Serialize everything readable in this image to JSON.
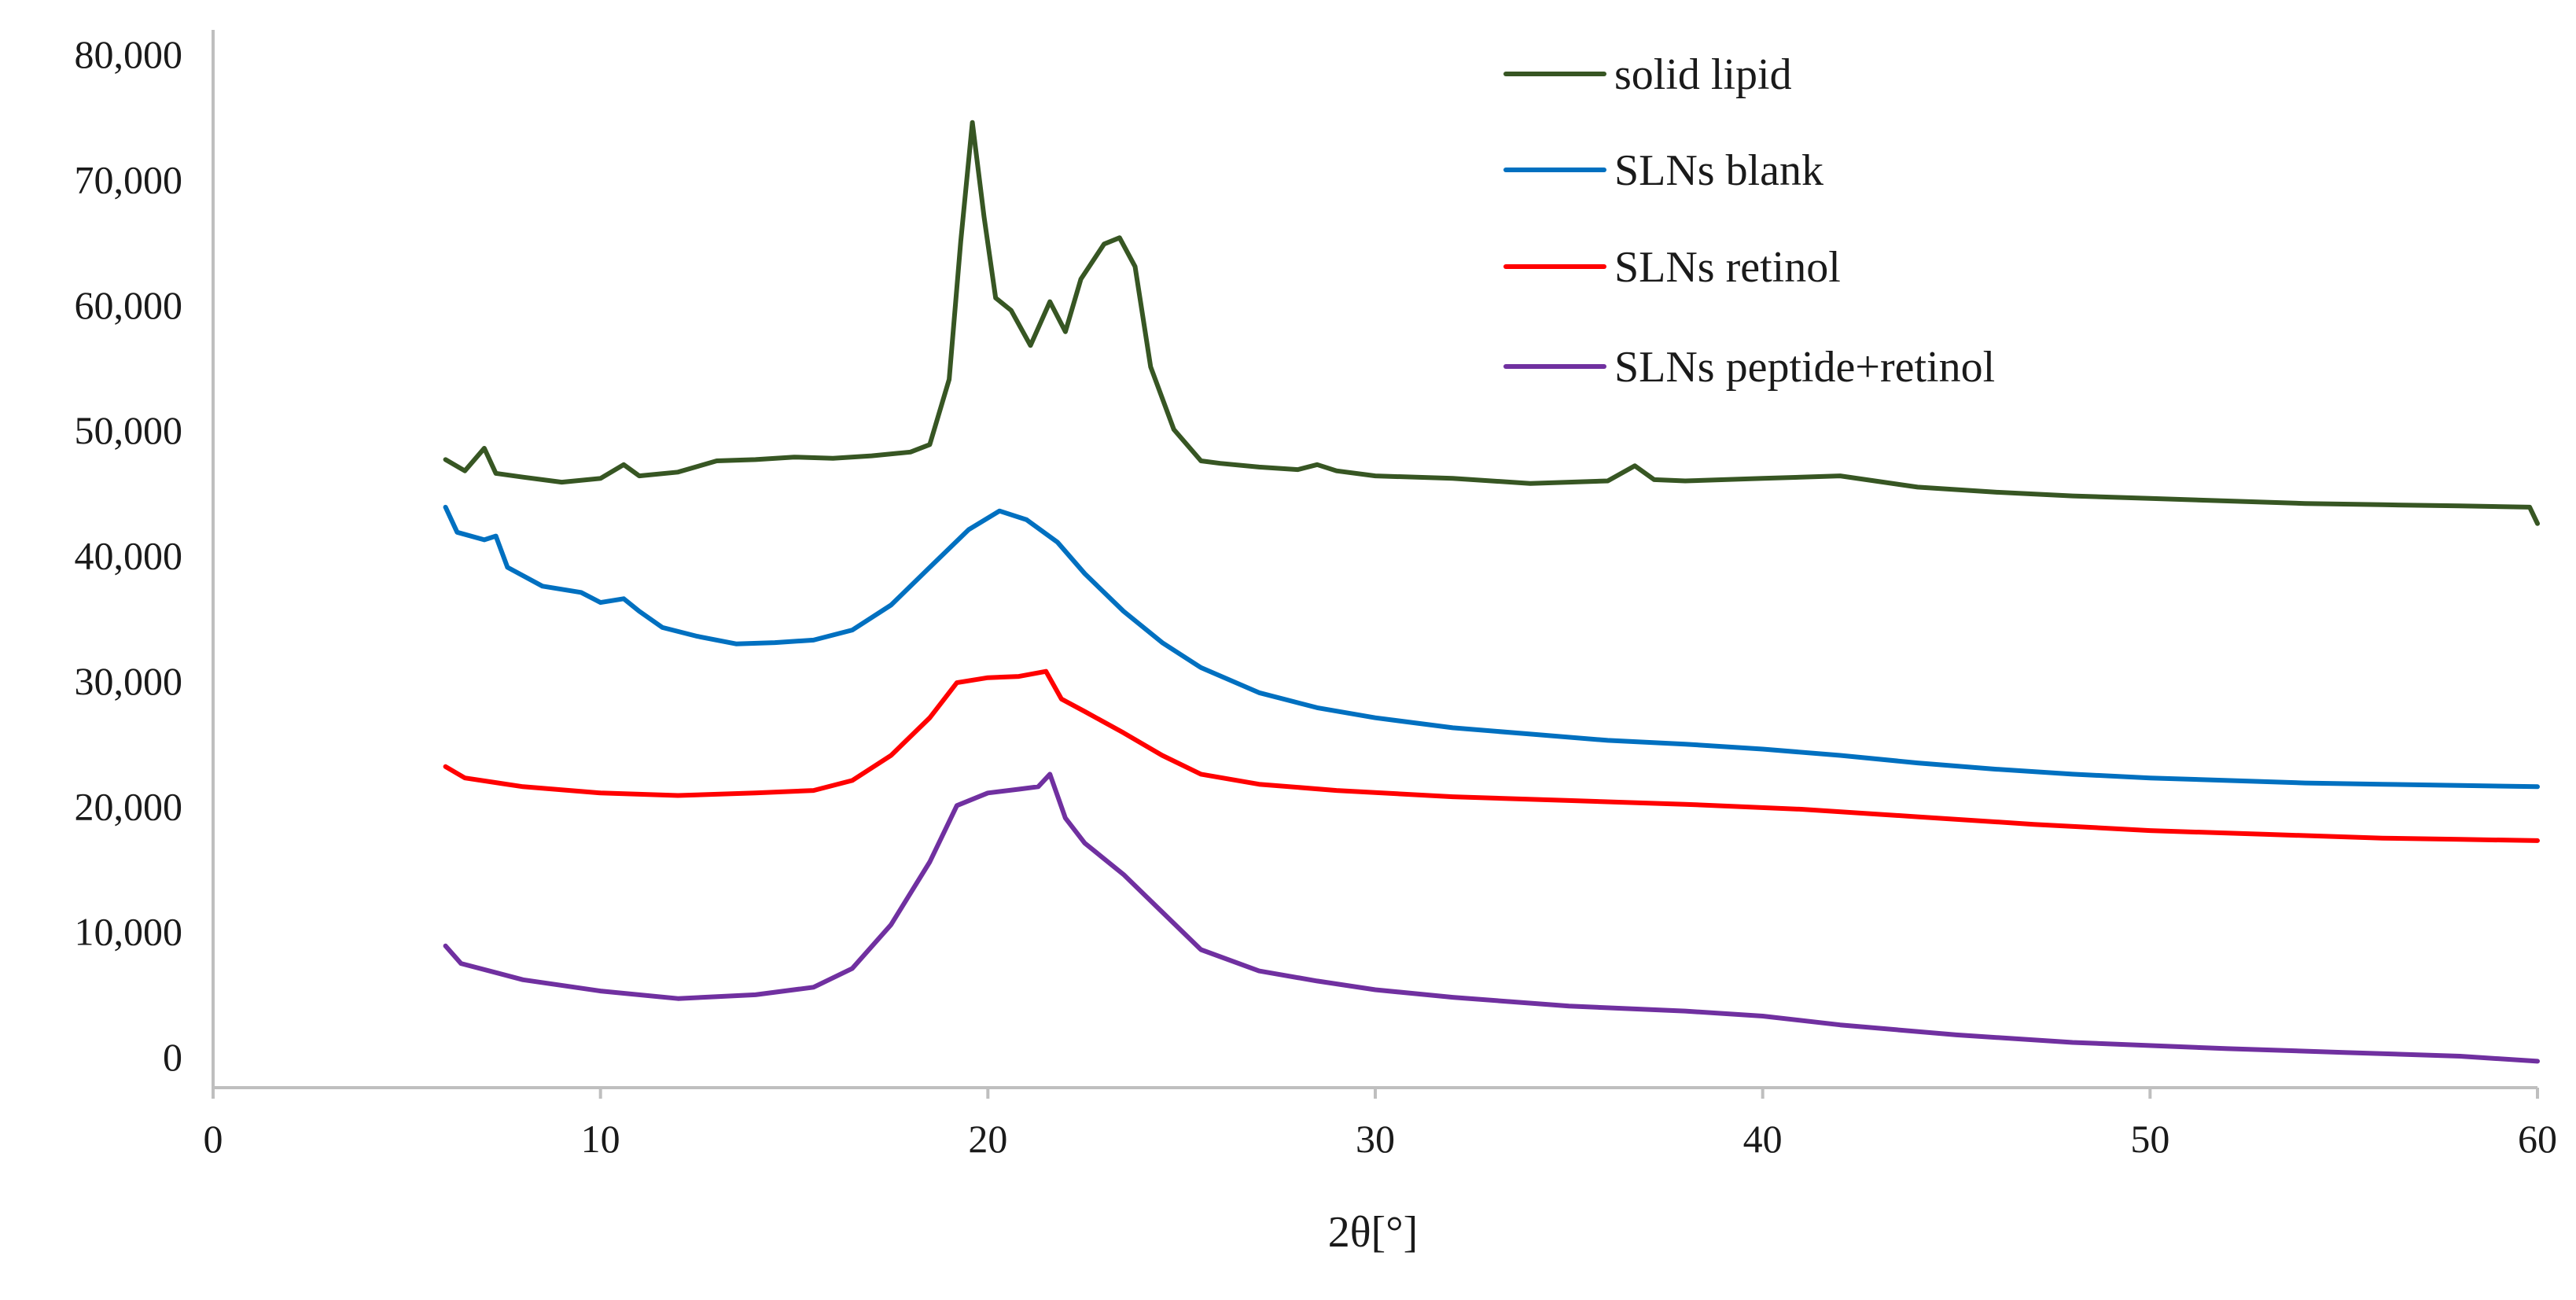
{
  "chart_data": {
    "type": "line",
    "title": "",
    "xlabel": "2θ[°]",
    "ylabel": "",
    "xlim": [
      0,
      60
    ],
    "ylim": [
      0,
      80000
    ],
    "x_ticks": [
      0,
      10,
      20,
      30,
      40,
      50,
      60
    ],
    "y_ticks": [
      0,
      10000,
      20000,
      30000,
      40000,
      50000,
      60000,
      70000,
      80000
    ],
    "y_tick_labels": [
      "0",
      "10,000",
      "20,000",
      "30,000",
      "40,000",
      "50,000",
      "60,000",
      "70,000",
      "80,000"
    ],
    "grid": false,
    "legend_position": "top-right",
    "series": [
      {
        "name": "solid lipid",
        "color": "#375623",
        "points": [
          [
            6,
            47600
          ],
          [
            6.5,
            46700
          ],
          [
            7,
            48500
          ],
          [
            7.3,
            46500
          ],
          [
            8,
            46200
          ],
          [
            9,
            45800
          ],
          [
            10,
            46100
          ],
          [
            10.6,
            47200
          ],
          [
            11,
            46300
          ],
          [
            12,
            46600
          ],
          [
            13,
            47500
          ],
          [
            14,
            47600
          ],
          [
            15,
            47800
          ],
          [
            16,
            47700
          ],
          [
            17,
            47900
          ],
          [
            18,
            48200
          ],
          [
            18.5,
            48800
          ],
          [
            19,
            54000
          ],
          [
            19.3,
            65000
          ],
          [
            19.6,
            74500
          ],
          [
            19.9,
            67000
          ],
          [
            20.2,
            60500
          ],
          [
            20.6,
            59500
          ],
          [
            21.1,
            56700
          ],
          [
            21.6,
            60200
          ],
          [
            22,
            57800
          ],
          [
            22.4,
            62000
          ],
          [
            23,
            64800
          ],
          [
            23.4,
            65300
          ],
          [
            23.8,
            63000
          ],
          [
            24.2,
            55000
          ],
          [
            24.8,
            50000
          ],
          [
            25.5,
            47500
          ],
          [
            26,
            47300
          ],
          [
            27,
            47000
          ],
          [
            28,
            46800
          ],
          [
            28.5,
            47200
          ],
          [
            29,
            46700
          ],
          [
            30,
            46300
          ],
          [
            32,
            46100
          ],
          [
            34,
            45700
          ],
          [
            36,
            45900
          ],
          [
            36.7,
            47100
          ],
          [
            37.2,
            46000
          ],
          [
            38,
            45900
          ],
          [
            40,
            46100
          ],
          [
            42,
            46300
          ],
          [
            44,
            45400
          ],
          [
            46,
            45000
          ],
          [
            48,
            44700
          ],
          [
            50,
            44500
          ],
          [
            52,
            44300
          ],
          [
            54,
            44100
          ],
          [
            56,
            44000
          ],
          [
            58,
            43900
          ],
          [
            59.8,
            43800
          ],
          [
            60,
            42500
          ]
        ]
      },
      {
        "name": "SLNs blank",
        "color": "#0070C0",
        "points": [
          [
            6,
            43800
          ],
          [
            6.3,
            41800
          ],
          [
            7,
            41200
          ],
          [
            7.3,
            41500
          ],
          [
            7.6,
            39000
          ],
          [
            8.5,
            37500
          ],
          [
            9.5,
            37000
          ],
          [
            10,
            36200
          ],
          [
            10.6,
            36500
          ],
          [
            11,
            35500
          ],
          [
            11.6,
            34200
          ],
          [
            12.5,
            33500
          ],
          [
            13.5,
            32900
          ],
          [
            14.5,
            33000
          ],
          [
            15.5,
            33200
          ],
          [
            16.5,
            34000
          ],
          [
            17.5,
            36000
          ],
          [
            18.5,
            39000
          ],
          [
            19.5,
            42000
          ],
          [
            20.3,
            43500
          ],
          [
            21,
            42800
          ],
          [
            21.8,
            41000
          ],
          [
            22.5,
            38500
          ],
          [
            23.5,
            35500
          ],
          [
            24.5,
            33000
          ],
          [
            25.5,
            31000
          ],
          [
            27,
            29000
          ],
          [
            28.5,
            27800
          ],
          [
            30,
            27000
          ],
          [
            32,
            26200
          ],
          [
            34,
            25700
          ],
          [
            36,
            25200
          ],
          [
            38,
            24900
          ],
          [
            40,
            24500
          ],
          [
            42,
            24000
          ],
          [
            44,
            23400
          ],
          [
            46,
            22900
          ],
          [
            48,
            22500
          ],
          [
            50,
            22200
          ],
          [
            52,
            22000
          ],
          [
            54,
            21800
          ],
          [
            56,
            21700
          ],
          [
            58,
            21600
          ],
          [
            60,
            21500
          ]
        ]
      },
      {
        "name": "SLNs retinol",
        "color": "#FF0000",
        "points": [
          [
            6,
            23100
          ],
          [
            6.5,
            22200
          ],
          [
            8,
            21500
          ],
          [
            10,
            21000
          ],
          [
            12,
            20800
          ],
          [
            14,
            21000
          ],
          [
            15.5,
            21200
          ],
          [
            16.5,
            22000
          ],
          [
            17.5,
            24000
          ],
          [
            18.5,
            27000
          ],
          [
            19.2,
            29800
          ],
          [
            20,
            30200
          ],
          [
            20.8,
            30300
          ],
          [
            21.5,
            30700
          ],
          [
            21.9,
            28500
          ],
          [
            22.5,
            27500
          ],
          [
            23.5,
            25800
          ],
          [
            24.5,
            24000
          ],
          [
            25.5,
            22500
          ],
          [
            27,
            21700
          ],
          [
            29,
            21200
          ],
          [
            32,
            20700
          ],
          [
            35,
            20400
          ],
          [
            38,
            20100
          ],
          [
            41,
            19700
          ],
          [
            44,
            19100
          ],
          [
            47,
            18500
          ],
          [
            50,
            18000
          ],
          [
            53,
            17700
          ],
          [
            56,
            17400
          ],
          [
            58,
            17300
          ],
          [
            60,
            17200
          ]
        ]
      },
      {
        "name": "SLNs peptide+retinol",
        "color": "#7030A0",
        "points": [
          [
            6,
            8800
          ],
          [
            6.4,
            7400
          ],
          [
            8,
            6100
          ],
          [
            10,
            5200
          ],
          [
            12,
            4600
          ],
          [
            14,
            4900
          ],
          [
            15.5,
            5500
          ],
          [
            16.5,
            7000
          ],
          [
            17.5,
            10500
          ],
          [
            18.5,
            15500
          ],
          [
            19.2,
            20000
          ],
          [
            20,
            21000
          ],
          [
            20.8,
            21300
          ],
          [
            21.3,
            21500
          ],
          [
            21.6,
            22500
          ],
          [
            22,
            19000
          ],
          [
            22.5,
            17000
          ],
          [
            23.5,
            14500
          ],
          [
            24.5,
            11500
          ],
          [
            25.5,
            8500
          ],
          [
            27,
            6800
          ],
          [
            28.5,
            6000
          ],
          [
            30,
            5300
          ],
          [
            32,
            4700
          ],
          [
            35,
            4000
          ],
          [
            38,
            3600
          ],
          [
            40,
            3200
          ],
          [
            42,
            2500
          ],
          [
            45,
            1700
          ],
          [
            48,
            1100
          ],
          [
            52,
            600
          ],
          [
            55,
            300
          ],
          [
            58,
            0
          ],
          [
            60,
            -400
          ]
        ]
      }
    ]
  }
}
